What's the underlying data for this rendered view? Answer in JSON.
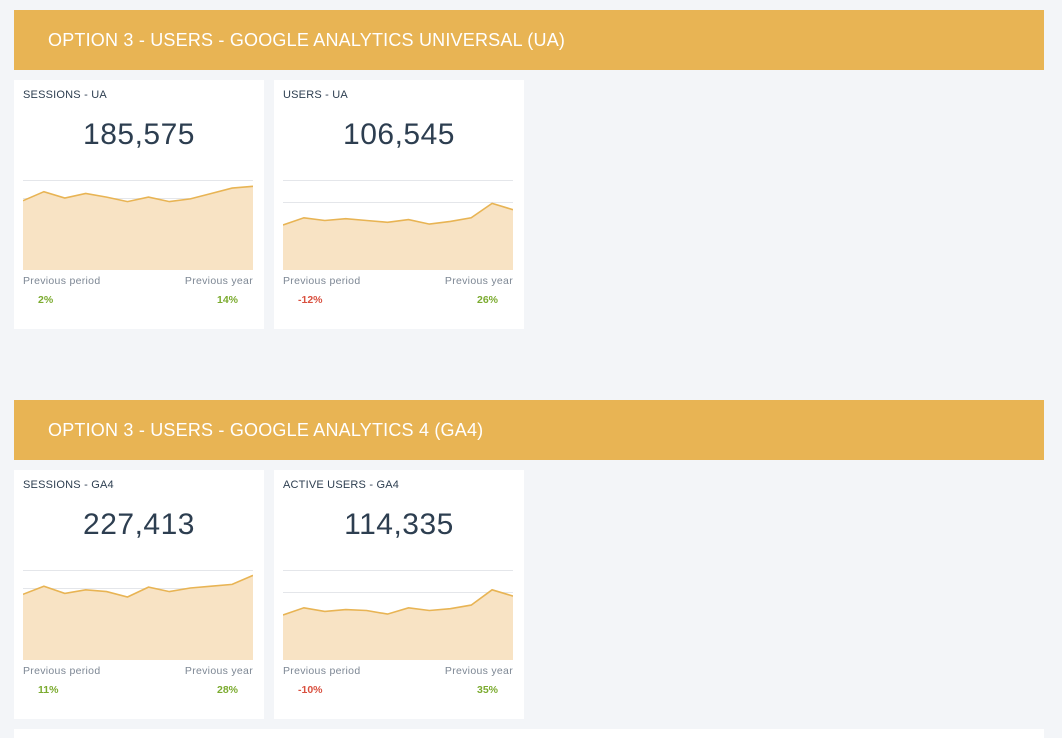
{
  "colors": {
    "header": "#e8b454",
    "line": "#e8b454",
    "fill": "#f8e3c4",
    "positive": "#7bab2f",
    "negative": "#d9503f"
  },
  "sections": [
    {
      "title": "OPTION 3  - USERS - GOOGLE ANALYTICS UNIVERSAL  (UA)",
      "cards": [
        {
          "title": "SESSIONS - UA",
          "value": "185,575",
          "prev_period_label": "Previous period",
          "prev_year_label": "Previous year",
          "prev_period_change": "2%",
          "prev_year_change": "14%",
          "prev_period_trend": "positive",
          "prev_year_trend": "positive",
          "spark": [
            0.77,
            0.87,
            0.8,
            0.85,
            0.81,
            0.76,
            0.81,
            0.76,
            0.79,
            0.85,
            0.91,
            0.93
          ],
          "gridlines": 5
        },
        {
          "title": "USERS - UA",
          "value": "106,545",
          "prev_period_label": "Previous period",
          "prev_year_label": "Previous year",
          "prev_period_change": "-12%",
          "prev_year_change": "26%",
          "prev_period_trend": "negative",
          "prev_year_trend": "positive",
          "spark": [
            0.5,
            0.58,
            0.55,
            0.57,
            0.55,
            0.53,
            0.56,
            0.51,
            0.54,
            0.58,
            0.74,
            0.67
          ],
          "gridlines": 4
        }
      ]
    },
    {
      "title": "OPTION 3 - USERS - GOOGLE ANALYTICS 4 (GA4)",
      "cards": [
        {
          "title": "SESSIONS - GA4",
          "value": "227,413",
          "prev_period_label": "Previous period",
          "prev_year_label": "Previous year",
          "prev_period_change": "11%",
          "prev_year_change": "28%",
          "prev_period_trend": "positive",
          "prev_year_trend": "positive",
          "spark": [
            0.73,
            0.82,
            0.74,
            0.78,
            0.76,
            0.7,
            0.81,
            0.76,
            0.8,
            0.82,
            0.84,
            0.94
          ],
          "gridlines": 5
        },
        {
          "title": "ACTIVE USERS - GA4",
          "value": "114,335",
          "prev_period_label": "Previous period",
          "prev_year_label": "Previous year",
          "prev_period_change": "-10%",
          "prev_year_change": "35%",
          "prev_period_trend": "negative",
          "prev_year_trend": "positive",
          "spark": [
            0.5,
            0.58,
            0.54,
            0.56,
            0.55,
            0.51,
            0.58,
            0.55,
            0.57,
            0.61,
            0.78,
            0.71
          ],
          "gridlines": 4
        }
      ]
    }
  ]
}
